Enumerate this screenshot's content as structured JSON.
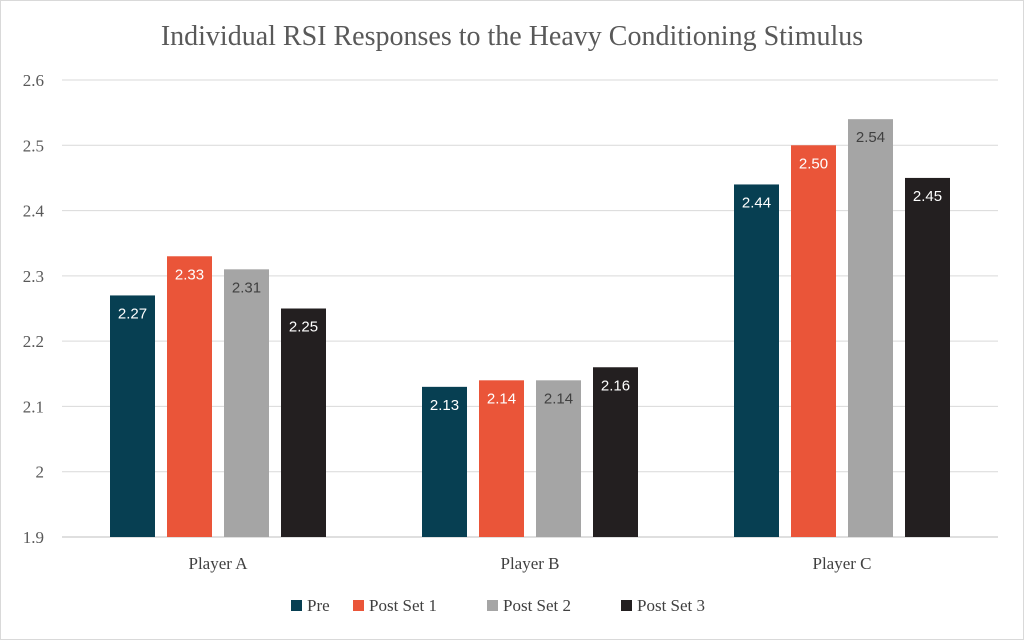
{
  "chart_data": {
    "type": "bar",
    "title": "Individual RSI Responses to the Heavy Conditioning Stimulus",
    "xlabel": "",
    "ylabel": "",
    "categories": [
      "Player A",
      "Player B",
      "Player C"
    ],
    "ylim": [
      1.9,
      2.6
    ],
    "yticks": [
      1.9,
      2,
      2.1,
      2.2,
      2.3,
      2.4,
      2.5,
      2.6
    ],
    "ytick_labels": [
      "1.9",
      "2",
      "2.1",
      "2.2",
      "2.3",
      "2.4",
      "2.5",
      "2.6"
    ],
    "grid": true,
    "legend_position": "bottom",
    "series": [
      {
        "name": "Pre",
        "color": "#073f52",
        "label_color": "#ffffff",
        "values": [
          2.27,
          2.13,
          2.44
        ],
        "labels": [
          "2.27",
          "2.13",
          "2.44"
        ]
      },
      {
        "name": "Post Set 1",
        "color": "#ea5539",
        "label_color": "#ffffff",
        "values": [
          2.33,
          2.14,
          2.5
        ],
        "labels": [
          "2.33",
          "2.14",
          "2.50"
        ]
      },
      {
        "name": "Post Set 2",
        "color": "#a5a5a5",
        "label_color": "#404040",
        "values": [
          2.31,
          2.14,
          2.54
        ],
        "labels": [
          "2.31",
          "2.14",
          "2.54"
        ]
      },
      {
        "name": "Post Set 3",
        "color": "#231f20",
        "label_color": "#ffffff",
        "values": [
          2.25,
          2.16,
          2.45
        ],
        "labels": [
          "2.25",
          "2.16",
          "2.45"
        ]
      }
    ]
  }
}
